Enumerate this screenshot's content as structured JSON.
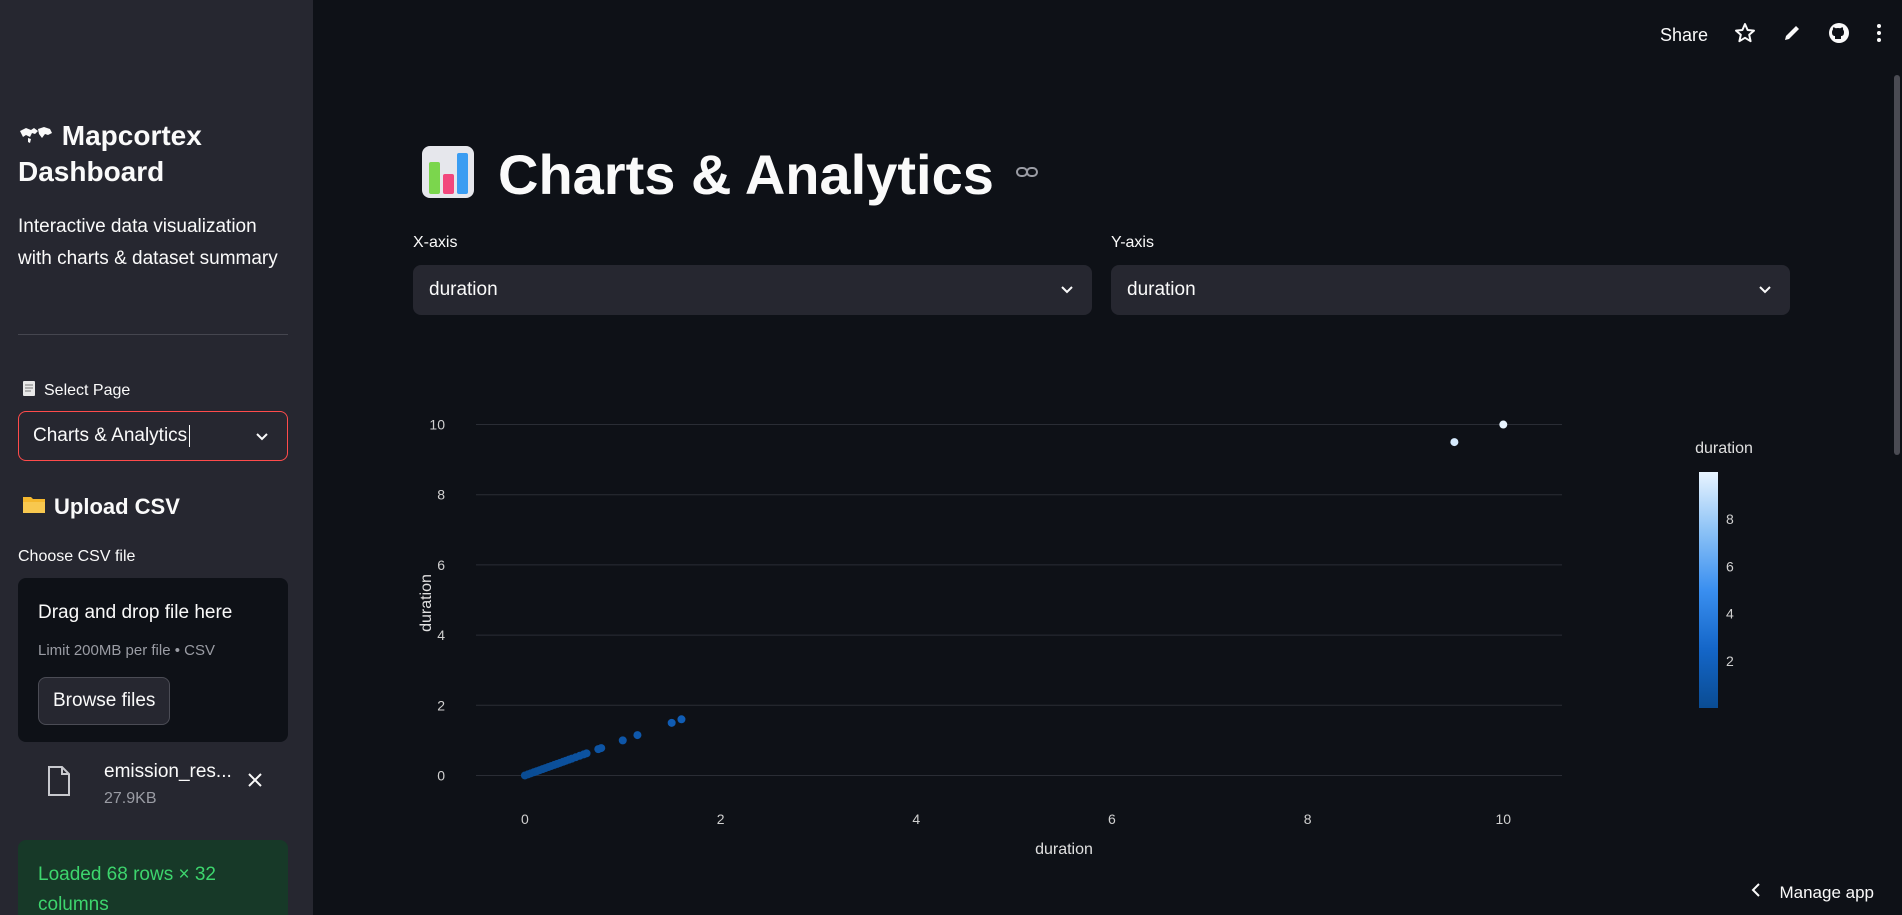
{
  "sidebar": {
    "title": "Mapcortex Dashboard",
    "description": "Interactive data visualization with charts & dataset summary",
    "select_page_label": "Select Page",
    "select_page_value": "Charts & Analytics",
    "upload_heading": "Upload CSV",
    "choose_label": "Choose CSV file",
    "dropzone_title": "Drag and drop file here",
    "dropzone_limit": "Limit 200MB per file • CSV",
    "browse_label": "Browse files",
    "file_name": "emission_res...",
    "file_size": "27.9KB",
    "status_message": "Loaded 68 rows × 32 columns"
  },
  "header": {
    "share_label": "Share"
  },
  "main": {
    "title": "Charts & Analytics",
    "x_axis_label": "X-axis",
    "x_axis_value": "duration",
    "y_axis_label": "Y-axis",
    "y_axis_value": "duration"
  },
  "footer": {
    "manage_label": "Manage app"
  },
  "colors": {
    "accent": "#ff4b4b",
    "success_text": "#3dd56d",
    "sidebar_bg": "#262730"
  },
  "chart_data": {
    "type": "scatter",
    "title": "",
    "xlabel": "duration",
    "ylabel": "duration",
    "xlim": [
      -0.5,
      10.6
    ],
    "ylim": [
      -0.5,
      10.3
    ],
    "xticks": [
      0,
      2,
      4,
      6,
      8,
      10
    ],
    "yticks": [
      0,
      2,
      4,
      6,
      8,
      10
    ],
    "colorbar": {
      "title": "duration",
      "ticks": [
        2,
        4,
        6,
        8
      ],
      "range": [
        0,
        10
      ]
    },
    "points": [
      {
        "x": 0,
        "y": 0
      },
      {
        "x": 0.03,
        "y": 0.03
      },
      {
        "x": 0.06,
        "y": 0.06
      },
      {
        "x": 0.09,
        "y": 0.09
      },
      {
        "x": 0.12,
        "y": 0.12
      },
      {
        "x": 0.15,
        "y": 0.15
      },
      {
        "x": 0.18,
        "y": 0.18
      },
      {
        "x": 0.21,
        "y": 0.21
      },
      {
        "x": 0.24,
        "y": 0.24
      },
      {
        "x": 0.27,
        "y": 0.27
      },
      {
        "x": 0.3,
        "y": 0.3
      },
      {
        "x": 0.33,
        "y": 0.33
      },
      {
        "x": 0.36,
        "y": 0.36
      },
      {
        "x": 0.39,
        "y": 0.39
      },
      {
        "x": 0.42,
        "y": 0.42
      },
      {
        "x": 0.45,
        "y": 0.45
      },
      {
        "x": 0.48,
        "y": 0.48
      },
      {
        "x": 0.52,
        "y": 0.52
      },
      {
        "x": 0.56,
        "y": 0.56
      },
      {
        "x": 0.6,
        "y": 0.6
      },
      {
        "x": 0.63,
        "y": 0.63
      },
      {
        "x": 0.75,
        "y": 0.75
      },
      {
        "x": 0.78,
        "y": 0.78
      },
      {
        "x": 1.0,
        "y": 1.0
      },
      {
        "x": 1.15,
        "y": 1.15
      },
      {
        "x": 1.5,
        "y": 1.5
      },
      {
        "x": 1.6,
        "y": 1.6
      },
      {
        "x": 9.5,
        "y": 9.5
      },
      {
        "x": 10,
        "y": 10
      }
    ]
  }
}
